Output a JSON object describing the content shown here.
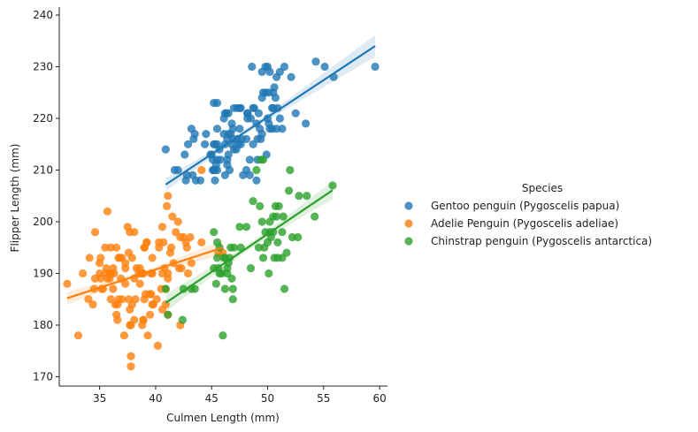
{
  "chart_data": {
    "type": "scatter",
    "title": "",
    "xlabel": "Culmen Length (mm)",
    "ylabel": "Flipper Length (mm)",
    "xlim": [
      31.4,
      60.7
    ],
    "ylim": [
      168.2,
      241.2
    ],
    "xticks": [
      35,
      40,
      45,
      50,
      55,
      60
    ],
    "yticks": [
      170,
      180,
      190,
      200,
      210,
      220,
      230,
      240
    ],
    "grid": false,
    "legend": {
      "title": "Species",
      "position": "right"
    },
    "series": [
      {
        "name": "Gentoo penguin (Pygoscelis papua)",
        "color": "#1f77b4",
        "points": [
          [
            40.9,
            214
          ],
          [
            41.7,
            210
          ],
          [
            42.0,
            210
          ],
          [
            42.6,
            213
          ],
          [
            42.7,
            208
          ],
          [
            42.8,
            209
          ],
          [
            42.9,
            215
          ],
          [
            43.2,
            218
          ],
          [
            43.3,
            209
          ],
          [
            43.4,
            216
          ],
          [
            43.5,
            217
          ],
          [
            43.6,
            208
          ],
          [
            44.0,
            208
          ],
          [
            44.4,
            215
          ],
          [
            44.5,
            217
          ],
          [
            44.9,
            213
          ],
          [
            45.0,
            213
          ],
          [
            45.1,
            210
          ],
          [
            45.1,
            212
          ],
          [
            45.2,
            215
          ],
          [
            45.2,
            223
          ],
          [
            45.3,
            210
          ],
          [
            45.3,
            208
          ],
          [
            45.4,
            211
          ],
          [
            45.5,
            210
          ],
          [
            45.5,
            212
          ],
          [
            45.5,
            215
          ],
          [
            45.5,
            218
          ],
          [
            45.7,
            214
          ],
          [
            45.8,
            212
          ],
          [
            46.1,
            220
          ],
          [
            46.2,
            215
          ],
          [
            46.2,
            209
          ],
          [
            46.3,
            221
          ],
          [
            46.4,
            216
          ],
          [
            46.4,
            212
          ],
          [
            46.4,
            211
          ],
          [
            46.5,
            217
          ],
          [
            46.5,
            213
          ],
          [
            46.6,
            210
          ],
          [
            46.7,
            217
          ],
          [
            46.8,
            215
          ],
          [
            46.8,
            219
          ],
          [
            46.9,
            216
          ],
          [
            47.0,
            222
          ],
          [
            47.2,
            214
          ],
          [
            47.3,
            216
          ],
          [
            47.4,
            215
          ],
          [
            47.5,
            218
          ],
          [
            47.5,
            222
          ],
          [
            47.6,
            215
          ],
          [
            47.7,
            216
          ],
          [
            47.8,
            209
          ],
          [
            48.1,
            216
          ],
          [
            48.1,
            210
          ],
          [
            48.2,
            221
          ],
          [
            48.4,
            212
          ],
          [
            48.4,
            209
          ],
          [
            48.5,
            220
          ],
          [
            48.6,
            230
          ],
          [
            48.7,
            215
          ],
          [
            48.7,
            222
          ],
          [
            48.8,
            222
          ],
          [
            49.0,
            208
          ],
          [
            49.1,
            212
          ],
          [
            49.1,
            216
          ],
          [
            49.2,
            221
          ],
          [
            49.3,
            218
          ],
          [
            49.4,
            216
          ],
          [
            49.5,
            224
          ],
          [
            49.5,
            229
          ],
          [
            49.6,
            225
          ],
          [
            49.8,
            225
          ],
          [
            49.8,
            230
          ],
          [
            49.9,
            213
          ],
          [
            50.0,
            230
          ],
          [
            50.0,
            220
          ],
          [
            50.1,
            225
          ],
          [
            50.2,
            218
          ],
          [
            50.4,
            218
          ],
          [
            50.4,
            222
          ],
          [
            50.5,
            222
          ],
          [
            50.5,
            225
          ],
          [
            50.6,
            226
          ],
          [
            50.7,
            224
          ],
          [
            50.8,
            228
          ],
          [
            50.9,
            222
          ],
          [
            51.1,
            229
          ],
          [
            51.1,
            220
          ],
          [
            51.3,
            218
          ],
          [
            51.5,
            230
          ],
          [
            52.1,
            228
          ],
          [
            52.5,
            221
          ],
          [
            53.4,
            219
          ],
          [
            54.3,
            231
          ],
          [
            55.1,
            230
          ],
          [
            55.9,
            228
          ],
          [
            59.6,
            230
          ],
          [
            46.5,
            221
          ],
          [
            47.0,
            214
          ],
          [
            48.2,
            220
          ],
          [
            46.1,
            217
          ],
          [
            49.5,
            217
          ],
          [
            50.8,
            218
          ],
          [
            45.2,
            210
          ],
          [
            47.6,
            222
          ],
          [
            46.9,
            218
          ],
          [
            47.3,
            222
          ],
          [
            45.3,
            215
          ],
          [
            50.1,
            219
          ],
          [
            49.0,
            219
          ],
          [
            45.5,
            223
          ],
          [
            46.2,
            221
          ],
          [
            50.2,
            229
          ],
          [
            48.2,
            221
          ]
        ],
        "regression": {
          "x": [
            40.9,
            59.6
          ],
          "y": [
            207.2,
            234.0
          ]
        }
      },
      {
        "name": "Adelie Penguin (Pygoscelis adeliae)",
        "color": "#ff7f0e",
        "points": [
          [
            32.1,
            188
          ],
          [
            33.1,
            178
          ],
          [
            33.5,
            190
          ],
          [
            34.0,
            185
          ],
          [
            34.1,
            193
          ],
          [
            34.4,
            184
          ],
          [
            34.5,
            187
          ],
          [
            34.6,
            198
          ],
          [
            34.6,
            189
          ],
          [
            35.0,
            190
          ],
          [
            35.1,
            193
          ],
          [
            35.2,
            187
          ],
          [
            35.3,
            187
          ],
          [
            35.5,
            195
          ],
          [
            35.5,
            190
          ],
          [
            35.6,
            191
          ],
          [
            35.7,
            189
          ],
          [
            35.7,
            202
          ],
          [
            35.9,
            190
          ],
          [
            35.9,
            189
          ],
          [
            36.0,
            185
          ],
          [
            36.0,
            195
          ],
          [
            36.0,
            190
          ],
          [
            36.2,
            187
          ],
          [
            36.3,
            190
          ],
          [
            36.4,
            184
          ],
          [
            36.5,
            182
          ],
          [
            36.5,
            195
          ],
          [
            36.6,
            181
          ],
          [
            36.7,
            185
          ],
          [
            36.7,
            193
          ],
          [
            36.8,
            193
          ],
          [
            36.9,
            189
          ],
          [
            37.0,
            185
          ],
          [
            37.2,
            178
          ],
          [
            37.3,
            191
          ],
          [
            37.3,
            188
          ],
          [
            37.5,
            199
          ],
          [
            37.6,
            194
          ],
          [
            37.6,
            185
          ],
          [
            37.7,
            180
          ],
          [
            37.7,
            183
          ],
          [
            37.8,
            174
          ],
          [
            37.8,
            172
          ],
          [
            37.8,
            180
          ],
          [
            37.9,
            184
          ],
          [
            38.1,
            181
          ],
          [
            38.1,
            198
          ],
          [
            38.2,
            185
          ],
          [
            38.3,
            191
          ],
          [
            38.5,
            190
          ],
          [
            38.6,
            191
          ],
          [
            38.7,
            190
          ],
          [
            38.8,
            180
          ],
          [
            38.9,
            181
          ],
          [
            38.9,
            190
          ],
          [
            39.0,
            185
          ],
          [
            39.0,
            195
          ],
          [
            39.1,
            186
          ],
          [
            39.2,
            196
          ],
          [
            39.3,
            178
          ],
          [
            39.5,
            182
          ],
          [
            39.6,
            190
          ],
          [
            39.6,
            186
          ],
          [
            39.7,
            190
          ],
          [
            39.7,
            184
          ],
          [
            39.8,
            184
          ],
          [
            40.1,
            185
          ],
          [
            40.2,
            176
          ],
          [
            40.3,
            196
          ],
          [
            40.5,
            187
          ],
          [
            40.6,
            190
          ],
          [
            40.6,
            199
          ],
          [
            40.7,
            196
          ],
          [
            40.8,
            191
          ],
          [
            40.9,
            184
          ],
          [
            41.0,
            203
          ],
          [
            41.1,
            182
          ],
          [
            41.1,
            190
          ],
          [
            41.3,
            194
          ],
          [
            41.4,
            195
          ],
          [
            41.5,
            201
          ],
          [
            41.6,
            192
          ],
          [
            41.8,
            198
          ],
          [
            42.0,
            200
          ],
          [
            42.1,
            191
          ],
          [
            42.2,
            180
          ],
          [
            42.2,
            197
          ],
          [
            42.3,
            191
          ],
          [
            42.5,
            197
          ],
          [
            42.7,
            196
          ],
          [
            42.8,
            195
          ],
          [
            42.9,
            190
          ],
          [
            43.1,
            197
          ],
          [
            43.2,
            192
          ],
          [
            44.1,
            196
          ],
          [
            44.1,
            210
          ],
          [
            45.6,
            194
          ],
          [
            46.0,
            194
          ],
          [
            37.0,
            193
          ],
          [
            38.6,
            188
          ],
          [
            39.2,
            196
          ],
          [
            36.6,
            184
          ],
          [
            38.8,
            190
          ],
          [
            41.1,
            189
          ],
          [
            39.5,
            186
          ],
          [
            40.9,
            187
          ],
          [
            36.2,
            191
          ],
          [
            37.7,
            198
          ],
          [
            40.6,
            183
          ],
          [
            37.9,
            193
          ],
          [
            39.7,
            193
          ],
          [
            38.1,
            189
          ],
          [
            40.3,
            195
          ],
          [
            35.0,
            192
          ],
          [
            38.9,
            181
          ],
          [
            35.1,
            189
          ],
          [
            37.3,
            192
          ],
          [
            41.1,
            205
          ],
          [
            39.0,
            195
          ]
        ],
        "regression": {
          "x": [
            32.1,
            46.0
          ],
          "y": [
            185.2,
            195.0
          ]
        }
      },
      {
        "name": "Chinstrap penguin (Pygoscelis antarctica)",
        "color": "#2ca02c",
        "points": [
          [
            40.9,
            187
          ],
          [
            41.1,
            182
          ],
          [
            42.4,
            181
          ],
          [
            42.5,
            187
          ],
          [
            43.2,
            187
          ],
          [
            43.5,
            187
          ],
          [
            45.2,
            191
          ],
          [
            45.2,
            198
          ],
          [
            45.4,
            188
          ],
          [
            45.5,
            196
          ],
          [
            45.6,
            191
          ],
          [
            45.7,
            190
          ],
          [
            45.7,
            195
          ],
          [
            45.9,
            190
          ],
          [
            46.0,
            178
          ],
          [
            46.1,
            193
          ],
          [
            46.2,
            187
          ],
          [
            46.4,
            191
          ],
          [
            46.4,
            190
          ],
          [
            46.5,
            192
          ],
          [
            46.6,
            193
          ],
          [
            46.7,
            195
          ],
          [
            46.8,
            189
          ],
          [
            46.9,
            185
          ],
          [
            47.0,
            195
          ],
          [
            47.5,
            199
          ],
          [
            47.6,
            195
          ],
          [
            48.1,
            199
          ],
          [
            48.5,
            191
          ],
          [
            49.0,
            210
          ],
          [
            49.2,
            195
          ],
          [
            49.3,
            203
          ],
          [
            49.5,
            200
          ],
          [
            49.6,
            193
          ],
          [
            49.7,
            195
          ],
          [
            49.8,
            198
          ],
          [
            50.0,
            196
          ],
          [
            50.1,
            190
          ],
          [
            50.2,
            198
          ],
          [
            50.3,
            197
          ],
          [
            50.5,
            198
          ],
          [
            50.6,
            193
          ],
          [
            50.7,
            203
          ],
          [
            50.8,
            201
          ],
          [
            50.9,
            196
          ],
          [
            51.0,
            203
          ],
          [
            51.3,
            198
          ],
          [
            51.4,
            201
          ],
          [
            51.5,
            187
          ],
          [
            51.7,
            194
          ],
          [
            51.9,
            206
          ],
          [
            52.0,
            210
          ],
          [
            52.2,
            197
          ],
          [
            52.7,
            197
          ],
          [
            52.8,
            205
          ],
          [
            53.5,
            205
          ],
          [
            54.2,
            201
          ],
          [
            55.8,
            207
          ],
          [
            49.6,
            212
          ],
          [
            49.4,
            212
          ],
          [
            50.9,
            193
          ],
          [
            48.7,
            204
          ],
          [
            46.9,
            187
          ],
          [
            45.5,
            193
          ],
          [
            50.2,
            200
          ],
          [
            51.3,
            193
          ],
          [
            50.5,
            201
          ],
          [
            46.2,
            193
          ]
        ],
        "regression": {
          "x": [
            40.9,
            55.8
          ],
          "y": [
            184.3,
            206.1
          ]
        }
      }
    ]
  }
}
